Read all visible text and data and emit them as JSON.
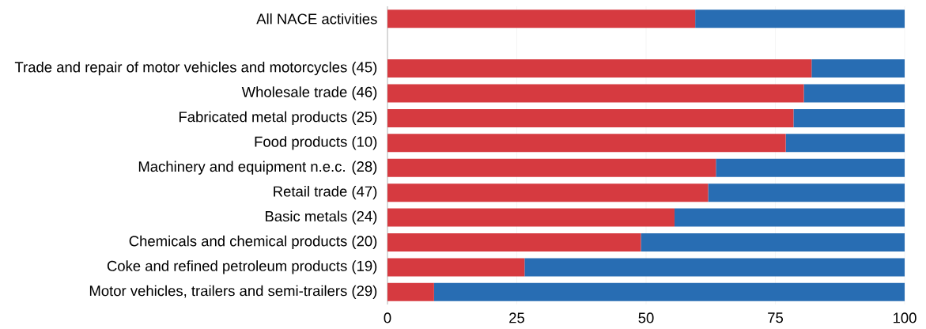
{
  "chart_data": {
    "type": "bar",
    "orientation": "horizontal",
    "stacked": true,
    "categories": [
      "All NACE activities",
      null,
      "Trade and repair of motor vehicles and motorcycles (45)",
      "Wholesale trade (46)",
      "Fabricated metal products (25)",
      "Food products (10)",
      "Machinery and equipment n.e.c. (28)",
      "Retail trade (47)",
      "Basic metals (24)",
      "Chemicals and chemical products (20)",
      "Coke and refined petroleum products (19)",
      "Motor vehicles, trailers and semi-trailers (29)"
    ],
    "series": [
      {
        "color": "#d63a40",
        "values": [
          59.5,
          null,
          82,
          80.5,
          78.5,
          77,
          63.5,
          62,
          55.5,
          49,
          26.5,
          9
        ]
      },
      {
        "color": "#286db3",
        "values": [
          40.5,
          null,
          18,
          19.5,
          21.5,
          23,
          36.5,
          38,
          44.5,
          51,
          73.5,
          91
        ]
      }
    ],
    "xlim": [
      0,
      100
    ],
    "xticks": [
      0,
      25,
      50,
      75,
      100
    ],
    "grid": "x"
  }
}
